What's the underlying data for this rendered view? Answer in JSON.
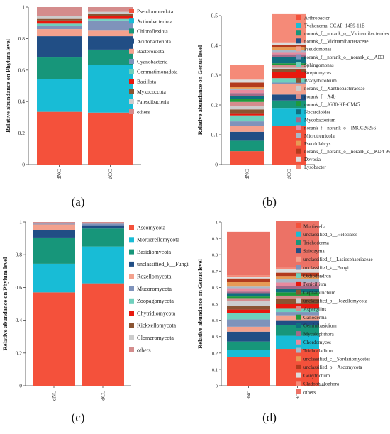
{
  "figure": {
    "panel_labels": [
      "(a)",
      "(b)",
      "(c)",
      "(d)"
    ]
  },
  "chart_data": [
    {
      "type": "bar",
      "stacked": true,
      "panel_label": "(a)",
      "categories": [
        "dNC",
        "dCC"
      ],
      "ylabel": "Relative abundance on Phylum level",
      "ylim": [
        0,
        1
      ],
      "yticks": [
        "0",
        "0.2",
        "0.4",
        "0.6",
        "0.8",
        "1"
      ],
      "legend_position": "right",
      "grid": false,
      "series": [
        {
          "name": "Pseudomonadota",
          "color": "#f4513b",
          "values": [
            0.335,
            0.33
          ]
        },
        {
          "name": "Actinobacteriota",
          "color": "#18bcd6",
          "values": [
            0.21,
            0.305
          ]
        },
        {
          "name": "Chloroflexiota",
          "color": "#17967a",
          "values": [
            0.135,
            0.095
          ]
        },
        {
          "name": "Acidobacteriota",
          "color": "#214e85",
          "values": [
            0.135,
            0.085
          ]
        },
        {
          "name": "Bacteroidota",
          "color": "#f3a18d",
          "values": [
            0.045,
            0.035
          ]
        },
        {
          "name": "Cyanobacteria",
          "color": "#7f93bb",
          "values": [
            0.02,
            0.065
          ]
        },
        {
          "name": "Gemmatimonadota",
          "color": "#6fd0bd",
          "values": [
            0.015,
            0.01
          ]
        },
        {
          "name": "Bacillota",
          "color": "#e8180e",
          "values": [
            0.02,
            0.02
          ]
        },
        {
          "name": "Myxococcota",
          "color": "#8a5432",
          "values": [
            0.01,
            0.01
          ]
        },
        {
          "name": "Patescibacteria",
          "color": "#cccccc",
          "values": [
            0.02,
            0.015
          ]
        },
        {
          "name": "others",
          "color": "#d48c8c",
          "values": [
            0.055,
            0.03
          ]
        }
      ]
    },
    {
      "type": "bar",
      "stacked": true,
      "panel_label": "(b)",
      "categories": [
        "dNC",
        "dCC"
      ],
      "ylabel": "Relative abundance on Genus level",
      "ylim": [
        0,
        0.5
      ],
      "yticks": [
        "0",
        "0.1",
        "0.2",
        "0.3",
        "0.4",
        "0.5"
      ],
      "legend_position": "right",
      "grid": false,
      "series": [
        {
          "name": "Arthrobacter",
          "color": "#f4513b",
          "values": [
            0.045,
            0.13
          ]
        },
        {
          "name": "Tychonema_CCAP_1459-11B",
          "color": "#18bcd6",
          "values": [
            0.0,
            0.06
          ]
        },
        {
          "name": "norank_f__norank_o__Vicinamibacterales",
          "color": "#17967a",
          "values": [
            0.035,
            0.025
          ]
        },
        {
          "name": "norank_f__Vicinamibacteraceae",
          "color": "#214e85",
          "values": [
            0.03,
            0.02
          ]
        },
        {
          "name": "Pseudomonas",
          "color": "#f3a18d",
          "values": [
            0.02,
            0.035
          ]
        },
        {
          "name": "norank_f__norank_o__norank_c__AD3",
          "color": "#7f93bb",
          "values": [
            0.015,
            0.005
          ]
        },
        {
          "name": "Sphingomonas",
          "color": "#6fd0bd",
          "values": [
            0.02,
            0.015
          ]
        },
        {
          "name": "Streptomyces",
          "color": "#e8180e",
          "values": [
            0.005,
            0.02
          ]
        },
        {
          "name": "Bradyrhizobium",
          "color": "#8a5432",
          "values": [
            0.015,
            0.01
          ]
        },
        {
          "name": "norank_f__Xanthobacteraceae",
          "color": "#cccccc",
          "values": [
            0.01,
            0.005
          ]
        },
        {
          "name": "norank_f__A4b",
          "color": "#d48c8c",
          "values": [
            0.015,
            0.01
          ]
        },
        {
          "name": "norank_f__JG30-KF-CM45",
          "color": "#1e9a3c",
          "values": [
            0.01,
            0.005
          ]
        },
        {
          "name": "Nocardioides",
          "color": "#0f6f80",
          "values": [
            0.01,
            0.02
          ]
        },
        {
          "name": "Mycobacterium",
          "color": "#a36a8a",
          "values": [
            0.01,
            0.01
          ]
        },
        {
          "name": "norank_f__norank_o__IMCC26256",
          "color": "#e88a9e",
          "values": [
            0.01,
            0.005
          ]
        },
        {
          "name": "Microtrerricola",
          "color": "#a8b8c8",
          "values": [
            0.005,
            0.01
          ]
        },
        {
          "name": "Pseudolabrys",
          "color": "#e79a55",
          "values": [
            0.005,
            0.01
          ]
        },
        {
          "name": "norank_f__norank_o__norank_c__KD4-96",
          "color": "#b23a1e",
          "values": [
            0.015,
            0.005
          ]
        },
        {
          "name": "Devosia",
          "color": "#dcdcdc",
          "values": [
            0.01,
            0.01
          ]
        },
        {
          "name": "Lysobacter",
          "color": "#f58a78",
          "values": [
            0.05,
            0.095
          ]
        }
      ]
    },
    {
      "type": "bar",
      "stacked": true,
      "panel_label": "(c)",
      "categories": [
        "dNC",
        "dCC"
      ],
      "ylabel": "Relative abundance on Phylum level",
      "ylim": [
        0,
        1
      ],
      "yticks": [
        "0",
        "0.2",
        "0.4",
        "0.6",
        "0.8",
        "1"
      ],
      "legend_position": "right",
      "grid": false,
      "series": [
        {
          "name": "Ascomycota",
          "color": "#f4513b",
          "values": [
            0.57,
            0.625
          ]
        },
        {
          "name": "Mortierellomycota",
          "color": "#18bcd6",
          "values": [
            0.175,
            0.225
          ]
        },
        {
          "name": "Basidiomycota",
          "color": "#17967a",
          "values": [
            0.16,
            0.11
          ]
        },
        {
          "name": "unclassified_k__Fungi",
          "color": "#214e85",
          "values": [
            0.045,
            0.02
          ]
        },
        {
          "name": "Rozellomycota",
          "color": "#f3a18d",
          "values": [
            0.035,
            0.0
          ]
        },
        {
          "name": "Mucoromycota",
          "color": "#7f93bb",
          "values": [
            0.005,
            0.01
          ]
        },
        {
          "name": "Zoopagomycota",
          "color": "#6fd0bd",
          "values": [
            0.0,
            0.0
          ]
        },
        {
          "name": "Chytridiomycota",
          "color": "#e8180e",
          "values": [
            0.0,
            0.0
          ]
        },
        {
          "name": "Kickxellomycota",
          "color": "#8a5432",
          "values": [
            0.0,
            0.0
          ]
        },
        {
          "name": "Glomeromycota",
          "color": "#cccccc",
          "values": [
            0.0,
            0.0
          ]
        },
        {
          "name": "others",
          "color": "#d48c8c",
          "values": [
            0.01,
            0.01
          ]
        }
      ]
    },
    {
      "type": "bar",
      "stacked": true,
      "panel_label": "(d)",
      "categories": [
        "dNC",
        "dCC"
      ],
      "ylabel": "Relative abundance on Genus level",
      "ylim": [
        0,
        1
      ],
      "yticks": [
        "0",
        "0.1",
        "0.2",
        "0.3",
        "0.4",
        "0.5",
        "0.6",
        "0.7",
        "0.8",
        "0.9",
        "1"
      ],
      "legend_position": "right",
      "grid": false,
      "series": [
        {
          "name": "Mortierella",
          "color": "#f4513b",
          "values": [
            0.175,
            0.225
          ]
        },
        {
          "name": "unclassified_o__Helotiales",
          "color": "#18bcd6",
          "values": [
            0.045,
            0.08
          ]
        },
        {
          "name": "Trichoderma",
          "color": "#17967a",
          "values": [
            0.05,
            0.065
          ]
        },
        {
          "name": "Saitozyma",
          "color": "#214e85",
          "values": [
            0.06,
            0.03
          ]
        },
        {
          "name": "unclassified_f__Lasiosphaeriaceae",
          "color": "#f3a18d",
          "values": [
            0.03,
            0.03
          ]
        },
        {
          "name": "unclassified_k__Fungi",
          "color": "#7f93bb",
          "values": [
            0.045,
            0.02
          ]
        },
        {
          "name": "Oidiodendron",
          "color": "#6fd0bd",
          "values": [
            0.04,
            0.02
          ]
        },
        {
          "name": "Penicillium",
          "color": "#e8180e",
          "values": [
            0.02,
            0.03
          ]
        },
        {
          "name": "Cephalotrichum",
          "color": "#8a5432",
          "values": [
            0.02,
            0.03
          ]
        },
        {
          "name": "unclassified_p__Rozellomycota",
          "color": "#cccccc",
          "values": [
            0.03,
            0.0
          ]
        },
        {
          "name": "Aspergillus",
          "color": "#d48c8c",
          "values": [
            0.02,
            0.02
          ]
        },
        {
          "name": "Ganoderma",
          "color": "#1e9a3c",
          "values": [
            0.01,
            0.02
          ]
        },
        {
          "name": "Geminibasidium",
          "color": "#0f6f80",
          "values": [
            0.02,
            0.02
          ]
        },
        {
          "name": "Mycelophthora",
          "color": "#a36a8a",
          "values": [
            0.01,
            0.02
          ]
        },
        {
          "name": "Chordomyces",
          "color": "#e88a9e",
          "values": [
            0.02,
            0.02
          ]
        },
        {
          "name": "Trichocladium",
          "color": "#a8b8c8",
          "values": [
            0.01,
            0.02
          ]
        },
        {
          "name": "unclassified_c__Sordariomycetes",
          "color": "#e79a55",
          "values": [
            0.03,
            0.02
          ]
        },
        {
          "name": "unclassified_p__Ascomycota",
          "color": "#b23a1e",
          "values": [
            0.02,
            0.02
          ]
        },
        {
          "name": "Gonytrichum",
          "color": "#dcdcdc",
          "values": [
            0.01,
            0.02
          ]
        },
        {
          "name": "Cladophialophora",
          "color": "#f58a78",
          "values": [
            0.01,
            0.01
          ]
        },
        {
          "name": "others",
          "color": "#ec7266",
          "values": [
            0.265,
            0.285
          ]
        }
      ]
    }
  ]
}
